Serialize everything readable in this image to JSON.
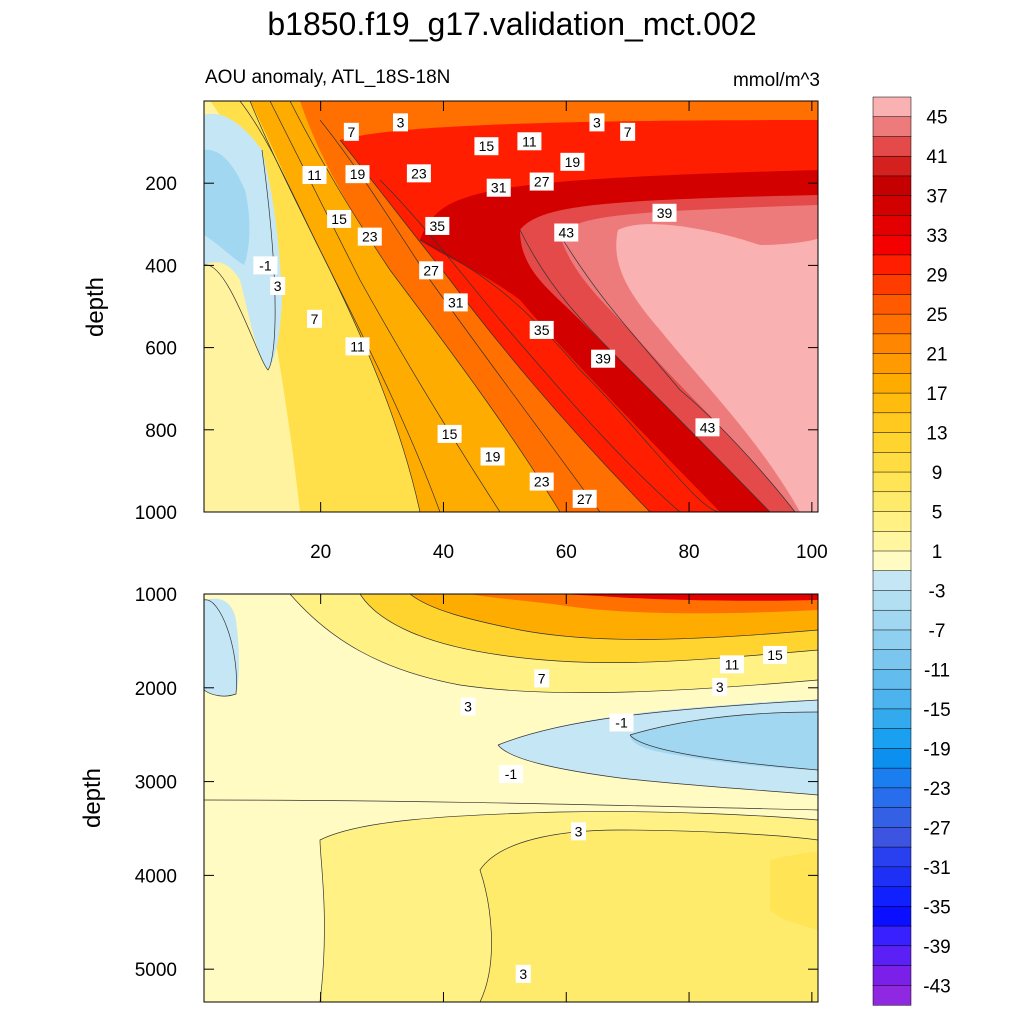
{
  "title": "b1850.f19_g17.validation_mct.002",
  "subtitle_left": "AOU anomaly, ATL_18S-18N",
  "subtitle_right": "mmol/m^3",
  "chart_data": [
    {
      "type": "contour",
      "name": "upper",
      "ylabel": "depth",
      "xlim": [
        1,
        101
      ],
      "ylim": [
        1000,
        0
      ],
      "xticks": [
        "20",
        "40",
        "60",
        "80",
        "100"
      ],
      "yticks": [
        "200",
        "400",
        "600",
        "800",
        "1000"
      ],
      "contour_labels": [
        {
          "text": "3",
          "x": 33,
          "y": 52
        },
        {
          "text": "7",
          "x": 25,
          "y": 75
        },
        {
          "text": "3",
          "x": 65,
          "y": 52
        },
        {
          "text": "7",
          "x": 70,
          "y": 75
        },
        {
          "text": "15",
          "x": 47,
          "y": 110
        },
        {
          "text": "11",
          "x": 54,
          "y": 98
        },
        {
          "text": "19",
          "x": 61,
          "y": 148
        },
        {
          "text": "11",
          "x": 19,
          "y": 180
        },
        {
          "text": "19",
          "x": 26,
          "y": 178
        },
        {
          "text": "23",
          "x": 36,
          "y": 176
        },
        {
          "text": "31",
          "x": 49,
          "y": 211
        },
        {
          "text": "27",
          "x": 56,
          "y": 196
        },
        {
          "text": "39",
          "x": 76,
          "y": 272
        },
        {
          "text": "15",
          "x": 23,
          "y": 287
        },
        {
          "text": "23",
          "x": 28,
          "y": 330
        },
        {
          "text": "35",
          "x": 39,
          "y": 304
        },
        {
          "text": "43",
          "x": 60,
          "y": 320
        },
        {
          "text": "-1",
          "x": 11,
          "y": 400
        },
        {
          "text": "3",
          "x": 13,
          "y": 450
        },
        {
          "text": "27",
          "x": 38,
          "y": 412
        },
        {
          "text": "31",
          "x": 42,
          "y": 490
        },
        {
          "text": "7",
          "x": 19,
          "y": 530
        },
        {
          "text": "35",
          "x": 56,
          "y": 557
        },
        {
          "text": "11",
          "x": 26,
          "y": 597
        },
        {
          "text": "39",
          "x": 66,
          "y": 627
        },
        {
          "text": "43",
          "x": 83,
          "y": 794
        },
        {
          "text": "15",
          "x": 41,
          "y": 810
        },
        {
          "text": "19",
          "x": 48,
          "y": 865
        },
        {
          "text": "23",
          "x": 56,
          "y": 926
        },
        {
          "text": "27",
          "x": 63,
          "y": 968
        }
      ]
    },
    {
      "type": "contour",
      "name": "lower",
      "ylabel": "depth",
      "xlim": [
        1,
        101
      ],
      "ylim": [
        5350,
        1000
      ],
      "yticks": [
        "1000",
        "2000",
        "3000",
        "4000",
        "5000"
      ],
      "contour_labels": [
        {
          "text": "15",
          "x": 94,
          "y": 1650
        },
        {
          "text": "11",
          "x": 87,
          "y": 1750
        },
        {
          "text": "7",
          "x": 56,
          "y": 1900
        },
        {
          "text": "3",
          "x": 85,
          "y": 1990
        },
        {
          "text": "3",
          "x": 44,
          "y": 2200
        },
        {
          "text": "-1",
          "x": 69,
          "y": 2370
        },
        {
          "text": "-1",
          "x": 51,
          "y": 2920
        },
        {
          "text": "3",
          "x": 62,
          "y": 3530
        },
        {
          "text": "3",
          "x": 53,
          "y": 5050
        }
      ]
    }
  ],
  "colorbar": {
    "labels": [
      "45",
      "41",
      "37",
      "33",
      "29",
      "25",
      "21",
      "17",
      "13",
      "9",
      "5",
      "1",
      "-3",
      "-7",
      "-11",
      "-15",
      "-19",
      "-23",
      "-27",
      "-31",
      "-35",
      "-39",
      "-43"
    ],
    "colors": [
      "#f9b1b1",
      "#ee7b7b",
      "#e44a4a",
      "#d52020",
      "#c40000",
      "#d30000",
      "#e40000",
      "#f40000",
      "#ff1e00",
      "#ff3c00",
      "#ff5a00",
      "#ff7000",
      "#ff8600",
      "#ff9a00",
      "#ffac00",
      "#ffbb0e",
      "#ffc91f",
      "#ffd42f",
      "#ffdc42",
      "#ffe455",
      "#ffeb6b",
      "#fff184",
      "#fff69f",
      "#fffbc3",
      "#c5e6f5",
      "#b3dff3",
      "#a2d7f1",
      "#8fcff0",
      "#7ac6ef",
      "#63bcee",
      "#4cb3ee",
      "#34aaee",
      "#1aa0f0",
      "#0c90f0",
      "#1a7ef0",
      "#286deb",
      "#3460e6",
      "#3d54e0",
      "#2940f0",
      "#1e30f5",
      "#1020ff",
      "#0a10ff",
      "#3820ff",
      "#5a20f5",
      "#7a20e8",
      "#8f28e0"
    ]
  }
}
